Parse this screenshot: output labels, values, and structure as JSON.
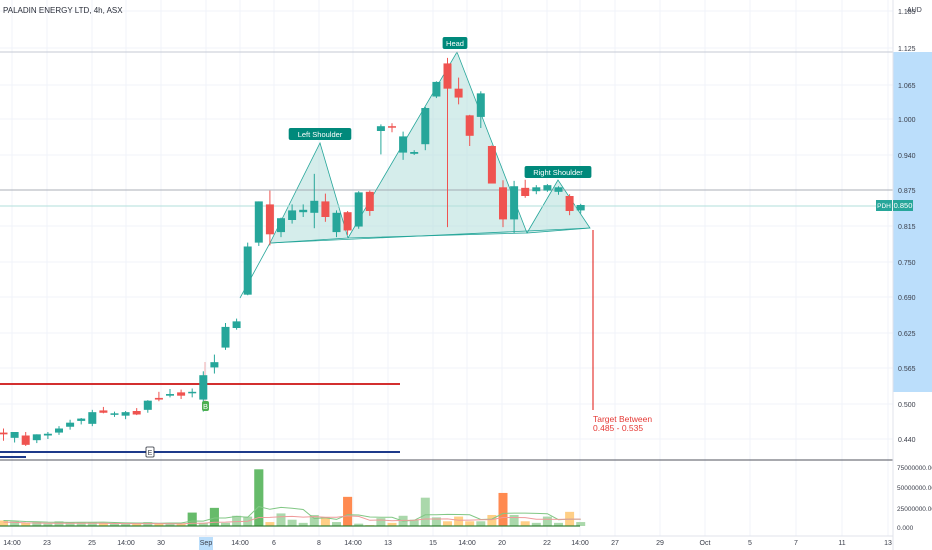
{
  "header": {
    "title": "PALADIN ENERGY LTD, 4h, ASX"
  },
  "currency": "AUD",
  "colors": {
    "up": "#26a69a",
    "down": "#ef5350",
    "pattern_fill": "#b2dfdb",
    "pattern_stroke": "#26a69a",
    "support": "#d32f2f",
    "lower_line": "#1e3a8a",
    "target": "#e53935"
  },
  "chart_data": {
    "type": "candlestick",
    "price_axis": {
      "ticks": [
        "1.185",
        "1.125",
        "1.065",
        "1.000",
        "0.940",
        "0.875",
        "0.815",
        "0.750",
        "0.690",
        "0.625",
        "0.565",
        "0.500",
        "0.440"
      ],
      "range": [
        0.41,
        1.2
      ]
    },
    "time_axis": {
      "ticks": [
        "14:00",
        "23",
        "25",
        "14:00",
        "30",
        "Sep",
        "14:00",
        "6",
        "8",
        "14:00",
        "13",
        "15",
        "14:00",
        "20",
        "22",
        "14:00",
        "27",
        "29",
        "Oct",
        "5",
        "7",
        "11",
        "13"
      ]
    },
    "current_price": {
      "label": "PDH",
      "value": "0.850"
    },
    "candles": [
      {
        "o": 0.451,
        "h": 0.458,
        "l": 0.437,
        "c": 0.448
      },
      {
        "o": 0.442,
        "h": 0.452,
        "l": 0.434,
        "c": 0.452
      },
      {
        "o": 0.446,
        "h": 0.452,
        "l": 0.428,
        "c": 0.43
      },
      {
        "o": 0.438,
        "h": 0.448,
        "l": 0.433,
        "c": 0.448
      },
      {
        "o": 0.446,
        "h": 0.452,
        "l": 0.44,
        "c": 0.449
      },
      {
        "o": 0.451,
        "h": 0.462,
        "l": 0.447,
        "c": 0.458
      },
      {
        "o": 0.461,
        "h": 0.473,
        "l": 0.456,
        "c": 0.468
      },
      {
        "o": 0.471,
        "h": 0.476,
        "l": 0.465,
        "c": 0.475
      },
      {
        "o": 0.466,
        "h": 0.49,
        "l": 0.462,
        "c": 0.486
      },
      {
        "o": 0.489,
        "h": 0.495,
        "l": 0.484,
        "c": 0.485
      },
      {
        "o": 0.483,
        "h": 0.487,
        "l": 0.478,
        "c": 0.484
      },
      {
        "o": 0.48,
        "h": 0.488,
        "l": 0.474,
        "c": 0.486
      },
      {
        "o": 0.488,
        "h": 0.493,
        "l": 0.481,
        "c": 0.482
      },
      {
        "o": 0.49,
        "h": 0.507,
        "l": 0.485,
        "c": 0.506
      },
      {
        "o": 0.511,
        "h": 0.522,
        "l": 0.505,
        "c": 0.508
      },
      {
        "o": 0.515,
        "h": 0.527,
        "l": 0.512,
        "c": 0.518
      },
      {
        "o": 0.521,
        "h": 0.526,
        "l": 0.509,
        "c": 0.515
      },
      {
        "o": 0.521,
        "h": 0.528,
        "l": 0.512,
        "c": 0.522
      },
      {
        "o": 0.508,
        "h": 0.559,
        "l": 0.487,
        "c": 0.552
      },
      {
        "o": 0.566,
        "h": 0.588,
        "l": 0.555,
        "c": 0.575
      },
      {
        "o": 0.6,
        "h": 0.643,
        "l": 0.596,
        "c": 0.636
      },
      {
        "o": 0.634,
        "h": 0.651,
        "l": 0.631,
        "c": 0.646
      },
      {
        "o": 0.694,
        "h": 0.785,
        "l": 0.693,
        "c": 0.778
      },
      {
        "o": 0.785,
        "h": 0.856,
        "l": 0.779,
        "c": 0.856
      },
      {
        "o": 0.851,
        "h": 0.874,
        "l": 0.78,
        "c": 0.8
      },
      {
        "o": 0.804,
        "h": 0.829,
        "l": 0.795,
        "c": 0.828
      },
      {
        "o": 0.825,
        "h": 0.851,
        "l": 0.819,
        "c": 0.841
      },
      {
        "o": 0.838,
        "h": 0.851,
        "l": 0.83,
        "c": 0.842
      },
      {
        "o": 0.837,
        "h": 0.905,
        "l": 0.811,
        "c": 0.857
      },
      {
        "o": 0.856,
        "h": 0.869,
        "l": 0.822,
        "c": 0.83
      },
      {
        "o": 0.804,
        "h": 0.841,
        "l": 0.795,
        "c": 0.837
      },
      {
        "o": 0.838,
        "h": 0.84,
        "l": 0.799,
        "c": 0.807
      },
      {
        "o": 0.814,
        "h": 0.873,
        "l": 0.81,
        "c": 0.871
      },
      {
        "o": 0.872,
        "h": 0.874,
        "l": 0.832,
        "c": 0.84
      },
      {
        "o": 0.98,
        "h": 0.991,
        "l": 0.941,
        "c": 0.988
      },
      {
        "o": 0.988,
        "h": 0.993,
        "l": 0.978,
        "c": 0.987
      },
      {
        "o": 0.944,
        "h": 0.979,
        "l": 0.931,
        "c": 0.971
      },
      {
        "o": 0.942,
        "h": 0.948,
        "l": 0.94,
        "c": 0.945
      },
      {
        "o": 0.958,
        "h": 1.023,
        "l": 0.948,
        "c": 1.021
      },
      {
        "o": 1.043,
        "h": 1.071,
        "l": 1.04,
        "c": 1.07
      },
      {
        "o": 1.1,
        "h": 1.109,
        "l": 0.813,
        "c": 1.058
      },
      {
        "o": 1.058,
        "h": 1.077,
        "l": 1.028,
        "c": 1.041
      },
      {
        "o": 1.007,
        "h": 1.008,
        "l": 0.955,
        "c": 0.972
      },
      {
        "o": 1.004,
        "h": 1.053,
        "l": 0.985,
        "c": 1.049
      },
      {
        "o": 0.955,
        "h": 0.956,
        "l": 0.89,
        "c": 0.887
      },
      {
        "o": 0.88,
        "h": 0.893,
        "l": 0.813,
        "c": 0.826
      },
      {
        "o": 0.826,
        "h": 0.892,
        "l": 0.802,
        "c": 0.882
      },
      {
        "o": 0.879,
        "h": 0.894,
        "l": 0.862,
        "c": 0.865
      },
      {
        "o": 0.873,
        "h": 0.884,
        "l": 0.868,
        "c": 0.88
      },
      {
        "o": 0.874,
        "h": 0.886,
        "l": 0.872,
        "c": 0.884
      },
      {
        "o": 0.872,
        "h": 0.882,
        "l": 0.867,
        "c": 0.88
      },
      {
        "o": 0.865,
        "h": 0.868,
        "l": 0.833,
        "c": 0.84
      },
      {
        "o": 0.841,
        "h": 0.852,
        "l": 0.836,
        "c": 0.85
      }
    ],
    "volume_axis": {
      "ticks": [
        "75000000.000",
        "50000000.000",
        "25000000.000",
        "0.000"
      ],
      "range": [
        0,
        80000000
      ]
    },
    "volumes": [
      7,
      6,
      4,
      5,
      3,
      6,
      5,
      5,
      5,
      4,
      3,
      3,
      4,
      5,
      3,
      4,
      3,
      17,
      4,
      23,
      4,
      13,
      12,
      72,
      5,
      16,
      8,
      4,
      14,
      11,
      5,
      37,
      3,
      1,
      10,
      4,
      13,
      8,
      36,
      11,
      6,
      12,
      6,
      6,
      14,
      42,
      14,
      6,
      4,
      12,
      4,
      18,
      5
    ],
    "annotations": {
      "left_shoulder": "Left Shoulder",
      "head": "Head",
      "right_shoulder": "Right Shoulder",
      "target_line1": "Target Between",
      "target_line2": "0.485 - 0.535",
      "marker_b": "B",
      "marker_e": "E"
    }
  }
}
